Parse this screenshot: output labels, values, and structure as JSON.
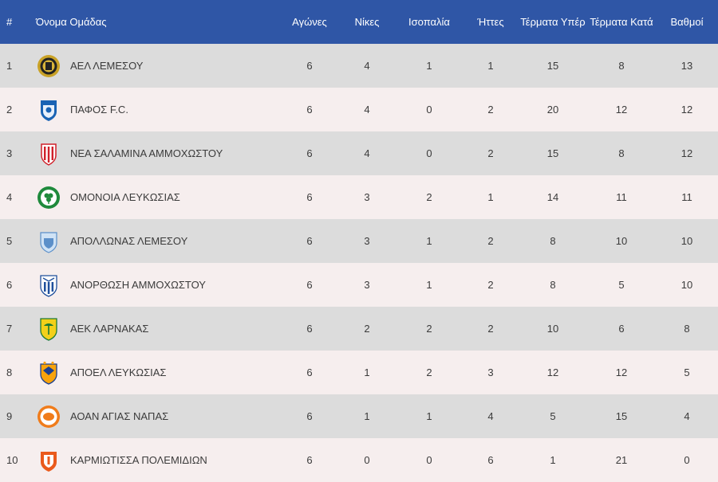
{
  "columns": {
    "rank": "#",
    "team": "Όνομα Ομάδας",
    "played": "Αγώνες",
    "wins": "Νίκες",
    "draws": "Ισοπαλία",
    "losses": "Ήττες",
    "goals_for": "Τέρματα Υπέρ",
    "goals_against": "Τέρματα Κατά",
    "points": "Βαθμοί"
  },
  "colors": {
    "header_bg": "#2f56a6",
    "row_odd": "#dcdcdc",
    "row_even": "#f6eeee"
  },
  "rows": [
    {
      "rank": "1",
      "team": "ΑΕΛ ΛΕΜΕΣΟΥ",
      "logo": "ael-limassol-logo",
      "played": "6",
      "wins": "4",
      "draws": "1",
      "losses": "1",
      "goals_for": "15",
      "goals_against": "8",
      "points": "13"
    },
    {
      "rank": "2",
      "team": "ΠΑΦΟΣ F.C.",
      "logo": "pafos-fc-logo",
      "played": "6",
      "wins": "4",
      "draws": "0",
      "losses": "2",
      "goals_for": "20",
      "goals_against": "12",
      "points": "12"
    },
    {
      "rank": "3",
      "team": "ΝΕΑ ΣΑΛΑΜΙΝΑ ΑΜΜΟΧΩΣΤΟΥ",
      "logo": "nea-salamina-logo",
      "played": "6",
      "wins": "4",
      "draws": "0",
      "losses": "2",
      "goals_for": "15",
      "goals_against": "8",
      "points": "12"
    },
    {
      "rank": "4",
      "team": "ΟΜΟΝΟΙΑ ΛΕΥΚΩΣΙΑΣ",
      "logo": "omonoia-logo",
      "played": "6",
      "wins": "3",
      "draws": "2",
      "losses": "1",
      "goals_for": "14",
      "goals_against": "11",
      "points": "11"
    },
    {
      "rank": "5",
      "team": "ΑΠΟΛΛΩΝΑΣ ΛΕΜΕΣΟΥ",
      "logo": "apollon-logo",
      "played": "6",
      "wins": "3",
      "draws": "1",
      "losses": "2",
      "goals_for": "8",
      "goals_against": "10",
      "points": "10"
    },
    {
      "rank": "6",
      "team": "ΑΝΟΡΘΩΣΗ ΑΜΜΟΧΩΣΤΟΥ",
      "logo": "anorthosis-logo",
      "played": "6",
      "wins": "3",
      "draws": "1",
      "losses": "2",
      "goals_for": "8",
      "goals_against": "5",
      "points": "10"
    },
    {
      "rank": "7",
      "team": "ΑΕΚ ΛΑΡΝΑΚΑΣ",
      "logo": "aek-larnaca-logo",
      "played": "6",
      "wins": "2",
      "draws": "2",
      "losses": "2",
      "goals_for": "10",
      "goals_against": "6",
      "points": "8"
    },
    {
      "rank": "8",
      "team": "ΑΠΟΕΛ ΛΕΥΚΩΣΙΑΣ",
      "logo": "apoel-logo",
      "played": "6",
      "wins": "1",
      "draws": "2",
      "losses": "3",
      "goals_for": "12",
      "goals_against": "12",
      "points": "5"
    },
    {
      "rank": "9",
      "team": "ΑΟΑΝ ΑΓΙΑΣ ΝΑΠΑΣ",
      "logo": "aoan-agia-napa-logo",
      "played": "6",
      "wins": "1",
      "draws": "1",
      "losses": "4",
      "goals_for": "5",
      "goals_against": "15",
      "points": "4"
    },
    {
      "rank": "10",
      "team": "ΚΑΡΜΙΩΤΙΣΣΑ ΠΟΛΕΜΙΔΙΩΝ",
      "logo": "karmiotissa-logo",
      "played": "6",
      "wins": "0",
      "draws": "0",
      "losses": "6",
      "goals_for": "1",
      "goals_against": "21",
      "points": "0"
    }
  ]
}
